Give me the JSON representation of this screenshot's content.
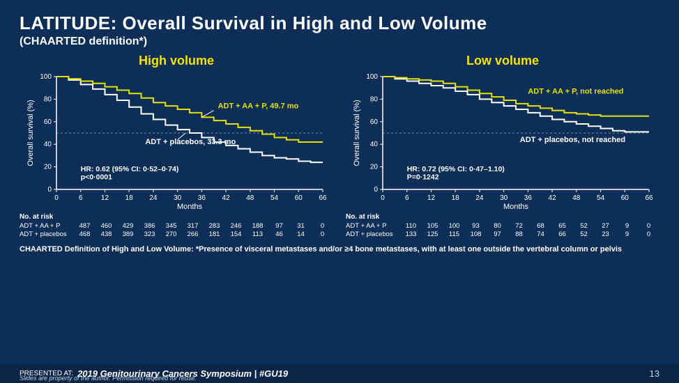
{
  "title": "LATITUDE: Overall Survival in High and Low Volume",
  "subtitle": "(CHAARTED definition*)",
  "charts": {
    "axis": {
      "xlabel": "Months",
      "ylabel": "Overall survival (%)",
      "xlim": [
        0,
        66
      ],
      "xticks": [
        0,
        6,
        12,
        18,
        24,
        30,
        36,
        42,
        48,
        54,
        60,
        66
      ],
      "ylim": [
        0,
        100
      ],
      "yticks": [
        0,
        20,
        40,
        60,
        80,
        100
      ],
      "ref_line": 50
    },
    "colors": {
      "bg": "#0d2e56",
      "axis": "#ffffff",
      "grid": "#6d8aa8",
      "treatment": "#e6e200",
      "placebo": "#ffffff"
    },
    "high": {
      "title": "High volume",
      "treatment_label": "ADT + AA + P, 49.7 mo",
      "placebo_label": "ADT + placebos, 33.3 mo",
      "hr_text1": "HR: 0.62 (95% CI: 0·52–0·74)",
      "hr_text2": "p<0·0001",
      "treatment_curve": [
        [
          0,
          100
        ],
        [
          3,
          98
        ],
        [
          6,
          96
        ],
        [
          9,
          94
        ],
        [
          12,
          91
        ],
        [
          15,
          88
        ],
        [
          18,
          85
        ],
        [
          21,
          81
        ],
        [
          24,
          77
        ],
        [
          27,
          74
        ],
        [
          30,
          71
        ],
        [
          33,
          68
        ],
        [
          36,
          64
        ],
        [
          39,
          61
        ],
        [
          42,
          58
        ],
        [
          45,
          55
        ],
        [
          48,
          52
        ],
        [
          51,
          49
        ],
        [
          54,
          46
        ],
        [
          57,
          44
        ],
        [
          60,
          42
        ],
        [
          63,
          42
        ],
        [
          66,
          42
        ]
      ],
      "placebo_curve": [
        [
          0,
          100
        ],
        [
          3,
          97
        ],
        [
          6,
          93
        ],
        [
          9,
          89
        ],
        [
          12,
          84
        ],
        [
          15,
          79
        ],
        [
          18,
          73
        ],
        [
          21,
          67
        ],
        [
          24,
          62
        ],
        [
          27,
          57
        ],
        [
          30,
          53
        ],
        [
          33,
          50
        ],
        [
          36,
          46
        ],
        [
          39,
          42
        ],
        [
          42,
          39
        ],
        [
          45,
          36
        ],
        [
          48,
          33
        ],
        [
          51,
          30
        ],
        [
          54,
          28
        ],
        [
          57,
          27
        ],
        [
          60,
          25
        ],
        [
          63,
          24
        ],
        [
          66,
          24
        ]
      ],
      "at_risk": {
        "header": "No. at risk",
        "rows": [
          {
            "label": "ADT + AA + P",
            "values": [
              487,
              460,
              429,
              386,
              345,
              317,
              283,
              246,
              188,
              97,
              31,
              0
            ]
          },
          {
            "label": "ADT + placebos",
            "values": [
              468,
              438,
              389,
              323,
              270,
              266,
              181,
              154,
              113,
              46,
              14,
              0
            ]
          }
        ]
      }
    },
    "low": {
      "title": "Low volume",
      "treatment_label": "ADT + AA + P, not reached",
      "placebo_label": "ADT + placebos, not reached",
      "hr_text1": "HR: 0.72 (95% CI: 0·47–1.10)",
      "hr_text2": "P=0·1242",
      "treatment_curve": [
        [
          0,
          100
        ],
        [
          3,
          99
        ],
        [
          6,
          98
        ],
        [
          9,
          97
        ],
        [
          12,
          96
        ],
        [
          15,
          94
        ],
        [
          18,
          91
        ],
        [
          21,
          88
        ],
        [
          24,
          85
        ],
        [
          27,
          82
        ],
        [
          30,
          79
        ],
        [
          33,
          76
        ],
        [
          36,
          74
        ],
        [
          39,
          72
        ],
        [
          42,
          70
        ],
        [
          45,
          68
        ],
        [
          48,
          67
        ],
        [
          51,
          66
        ],
        [
          54,
          65
        ],
        [
          57,
          65
        ],
        [
          60,
          65
        ],
        [
          63,
          65
        ],
        [
          66,
          65
        ]
      ],
      "placebo_curve": [
        [
          0,
          100
        ],
        [
          3,
          98
        ],
        [
          6,
          96
        ],
        [
          9,
          94
        ],
        [
          12,
          92
        ],
        [
          15,
          90
        ],
        [
          18,
          87
        ],
        [
          21,
          84
        ],
        [
          24,
          80
        ],
        [
          27,
          77
        ],
        [
          30,
          74
        ],
        [
          33,
          71
        ],
        [
          36,
          68
        ],
        [
          39,
          65
        ],
        [
          42,
          62
        ],
        [
          45,
          60
        ],
        [
          48,
          58
        ],
        [
          51,
          56
        ],
        [
          54,
          54
        ],
        [
          57,
          52
        ],
        [
          60,
          51
        ],
        [
          63,
          51
        ],
        [
          66,
          51
        ]
      ],
      "at_risk": {
        "header": "No. at risk",
        "rows": [
          {
            "label": "ADT + AA + P",
            "values": [
              110,
              105,
              100,
              93,
              80,
              72,
              68,
              65,
              52,
              27,
              9,
              0
            ]
          },
          {
            "label": "ADT + placebos",
            "values": [
              133,
              125,
              115,
              108,
              97,
              88,
              74,
              66,
              52,
              23,
              9,
              0
            ]
          }
        ]
      }
    }
  },
  "footnote": "CHAARTED Definition of High and Low Volume: *Presence of visceral metastases and/or ≥4 bone metastases, with at least one outside the vertebral column or pelvis",
  "footer": {
    "presented_at": "PRESENTED AT:",
    "conference": "2019 Genitourinary Cancers Symposium  |  #GU19",
    "disclaimer": "Slides are property of the author. Permission required for reuse.",
    "page": "13"
  }
}
